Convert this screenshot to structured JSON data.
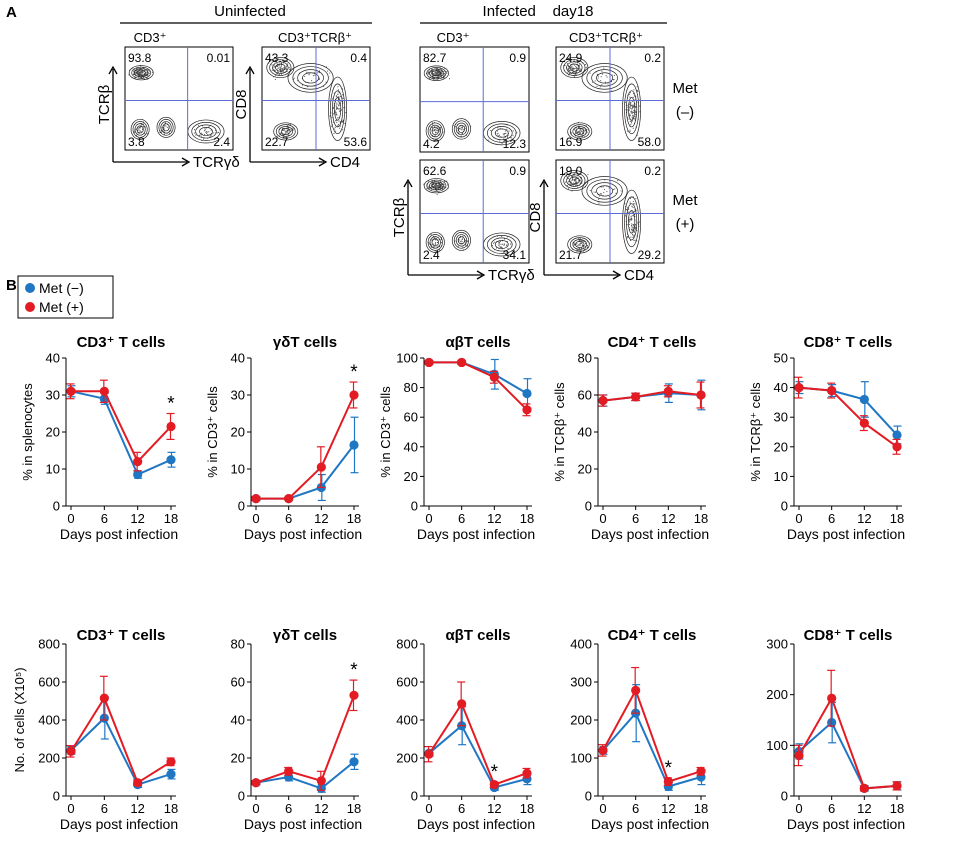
{
  "panel_a": {
    "letter": "A",
    "uninfected": {
      "header": "Uninfected",
      "plots": [
        {
          "gate": "CD3⁺",
          "y_axis": "TCRβ",
          "x_axis": "TCRγδ",
          "q": {
            "ul": "93.8",
            "ur": "0.01",
            "ll": "3.8",
            "lr": "2.4"
          }
        },
        {
          "gate": "CD3⁺TCRβ⁺",
          "y_axis": "CD8",
          "x_axis": "CD4",
          "q": {
            "ul": "43.3",
            "ur": "0.4",
            "ll": "22.7",
            "lr": "53.6"
          }
        }
      ]
    },
    "infected": {
      "header": "Infected    day18",
      "rows": [
        {
          "label_1": "Met",
          "label_2": "(–)",
          "plots": [
            {
              "gate": "CD3⁺",
              "q": {
                "ul": "82.7",
                "ur": "0.9",
                "ll": "4.2",
                "lr": "12.3"
              }
            },
            {
              "gate": "CD3⁺TCRβ⁺",
              "q": {
                "ul": "24.9",
                "ur": "0.2",
                "ll": "16.9",
                "lr": "58.0"
              }
            }
          ]
        },
        {
          "label_1": "Met",
          "label_2": "(+)",
          "plots": [
            {
              "y_axis": "TCRβ",
              "x_axis": "TCRγδ",
              "q": {
                "ul": "62.6",
                "ur": "0.9",
                "ll": "2.4",
                "lr": "34.1"
              }
            },
            {
              "y_axis": "CD8",
              "x_axis": "CD4",
              "q": {
                "ul": "19.0",
                "ur": "0.2",
                "ll": "21.7",
                "lr": "29.2"
              }
            }
          ]
        }
      ]
    }
  },
  "panel_b": {
    "letter": "B",
    "legend": [
      {
        "label": "Met (−)",
        "color": "#1f77c4"
      },
      {
        "label": "Met (+)",
        "color": "#e31b23"
      }
    ]
  },
  "chart_data": [
    {
      "type": "line",
      "title": "CD3⁺ T cells",
      "xlabel": "Days post infection",
      "ylabel": "% in splenocytes",
      "x": [
        0,
        6,
        12,
        18
      ],
      "ylim": [
        0,
        40
      ],
      "yticks": [
        0,
        10,
        20,
        30,
        40
      ],
      "series": [
        {
          "name": "Met (−)",
          "values": [
            31,
            29,
            8.5,
            12.5
          ],
          "err": [
            1.5,
            1.5,
            1,
            2
          ]
        },
        {
          "name": "Met (+)",
          "values": [
            31,
            31,
            12,
            21.5
          ],
          "err": [
            2,
            3,
            2.5,
            3.5
          ]
        }
      ],
      "star_at": 18,
      "star": "*"
    },
    {
      "type": "line",
      "title": "γδT cells",
      "xlabel": "Days post infection",
      "ylabel": "% in CD3⁺ cells",
      "x": [
        0,
        6,
        12,
        18
      ],
      "ylim": [
        0,
        40
      ],
      "yticks": [
        0,
        10,
        20,
        30,
        40
      ],
      "series": [
        {
          "name": "Met (−)",
          "values": [
            2,
            2,
            5,
            16.5
          ],
          "err": [
            0.5,
            0.3,
            3.5,
            7.5
          ]
        },
        {
          "name": "Met (+)",
          "values": [
            2,
            2,
            10.5,
            30
          ],
          "err": [
            0.5,
            0.3,
            5.5,
            3.5
          ]
        }
      ],
      "star_at": 18,
      "star": "*"
    },
    {
      "type": "line",
      "title": "αβT cells",
      "xlabel": "Days post infection",
      "ylabel": "% in CD3⁺ cells",
      "x": [
        0,
        6,
        12,
        18
      ],
      "ylim": [
        0,
        100
      ],
      "yticks": [
        0,
        20,
        40,
        60,
        80,
        100
      ],
      "series": [
        {
          "name": "Met (−)",
          "values": [
            97,
            97,
            89,
            76
          ],
          "err": [
            1,
            1,
            10,
            10
          ]
        },
        {
          "name": "Met (+)",
          "values": [
            97,
            97,
            87,
            65
          ],
          "err": [
            1,
            1,
            4,
            4
          ]
        }
      ]
    },
    {
      "type": "line",
      "title": "CD4⁺ T cells",
      "xlabel": "Days post infection",
      "ylabel": "% in TCRβ⁺ cells",
      "x": [
        0,
        6,
        12,
        18
      ],
      "ylim": [
        0,
        80
      ],
      "yticks": [
        0,
        20,
        40,
        60,
        80
      ],
      "series": [
        {
          "name": "Met (−)",
          "values": [
            57,
            59,
            61,
            60
          ],
          "err": [
            3,
            2,
            5,
            8
          ]
        },
        {
          "name": "Met (+)",
          "values": [
            57,
            59,
            62,
            60
          ],
          "err": [
            3,
            2,
            3,
            7
          ]
        }
      ]
    },
    {
      "type": "line",
      "title": "CD8⁺ T cells",
      "xlabel": "Days post infection",
      "ylabel": "% in TCRβ⁺ cells",
      "x": [
        0,
        6,
        12,
        18
      ],
      "ylim": [
        0,
        50
      ],
      "yticks": [
        0,
        10,
        20,
        30,
        40,
        50
      ],
      "series": [
        {
          "name": "Met (−)",
          "values": [
            40,
            39,
            36,
            24
          ],
          "err": [
            2,
            2,
            6,
            3
          ]
        },
        {
          "name": "Met (+)",
          "values": [
            40,
            39,
            28,
            20
          ],
          "err": [
            3.5,
            2.5,
            2.5,
            2.5
          ]
        }
      ]
    },
    {
      "type": "line",
      "title": "CD3⁺ T cells",
      "xlabel": "Days post infection",
      "ylabel": "No. of cells (X10⁵)",
      "x": [
        0,
        6,
        12,
        18
      ],
      "ylim": [
        0,
        800
      ],
      "yticks": [
        0,
        200,
        400,
        600,
        800
      ],
      "series": [
        {
          "name": "Met (−)",
          "values": [
            240,
            410,
            60,
            115
          ],
          "err": [
            20,
            110,
            15,
            25
          ]
        },
        {
          "name": "Met (+)",
          "values": [
            235,
            515,
            70,
            180
          ],
          "err": [
            30,
            115,
            15,
            20
          ]
        }
      ]
    },
    {
      "type": "line",
      "title": "γδT cells",
      "xlabel": "Days post infection",
      "ylabel": "",
      "x": [
        0,
        6,
        12,
        18
      ],
      "ylim": [
        0,
        80
      ],
      "yticks": [
        0,
        20,
        40,
        60,
        80
      ],
      "series": [
        {
          "name": "Met (−)",
          "values": [
            7,
            10,
            4,
            18
          ],
          "err": [
            1,
            2,
            2,
            4
          ]
        },
        {
          "name": "Met (+)",
          "values": [
            7,
            13,
            8,
            53
          ],
          "err": [
            1,
            2,
            5,
            8
          ]
        }
      ],
      "star_at": 18,
      "star": "*"
    },
    {
      "type": "line",
      "title": "αβT cells",
      "xlabel": "Days post infection",
      "ylabel": "",
      "x": [
        0,
        6,
        12,
        18
      ],
      "ylim": [
        0,
        800
      ],
      "yticks": [
        0,
        200,
        400,
        600,
        800
      ],
      "series": [
        {
          "name": "Met (−)",
          "values": [
            225,
            370,
            45,
            90
          ],
          "err": [
            15,
            100,
            15,
            30
          ]
        },
        {
          "name": "Met (+)",
          "values": [
            220,
            485,
            60,
            120
          ],
          "err": [
            40,
            115,
            15,
            25
          ]
        }
      ],
      "star_at": 12,
      "star": "*"
    },
    {
      "type": "line",
      "title": "CD4⁺ T cells",
      "xlabel": "Days post infection",
      "ylabel": "",
      "x": [
        0,
        6,
        12,
        18
      ],
      "ylim": [
        0,
        400
      ],
      "yticks": [
        0,
        100,
        200,
        300,
        400
      ],
      "series": [
        {
          "name": "Met (−)",
          "values": [
            120,
            218,
            25,
            50
          ],
          "err": [
            10,
            75,
            10,
            20
          ]
        },
        {
          "name": "Met (+)",
          "values": [
            120,
            278,
            38,
            65
          ],
          "err": [
            15,
            60,
            10,
            10
          ]
        }
      ],
      "star_at": 12,
      "star": "*"
    },
    {
      "type": "line",
      "title": "CD8⁺ T cells",
      "xlabel": "Days post infection",
      "ylabel": "",
      "x": [
        0,
        6,
        12,
        18
      ],
      "ylim": [
        0,
        300
      ],
      "yticks": [
        0,
        100,
        200,
        300
      ],
      "series": [
        {
          "name": "Met (−)",
          "values": [
            88,
            145,
            15,
            20
          ],
          "err": [
            15,
            40,
            5,
            8
          ]
        },
        {
          "name": "Met (+)",
          "values": [
            80,
            193,
            15,
            20
          ],
          "err": [
            20,
            55,
            5,
            8
          ]
        }
      ]
    }
  ]
}
